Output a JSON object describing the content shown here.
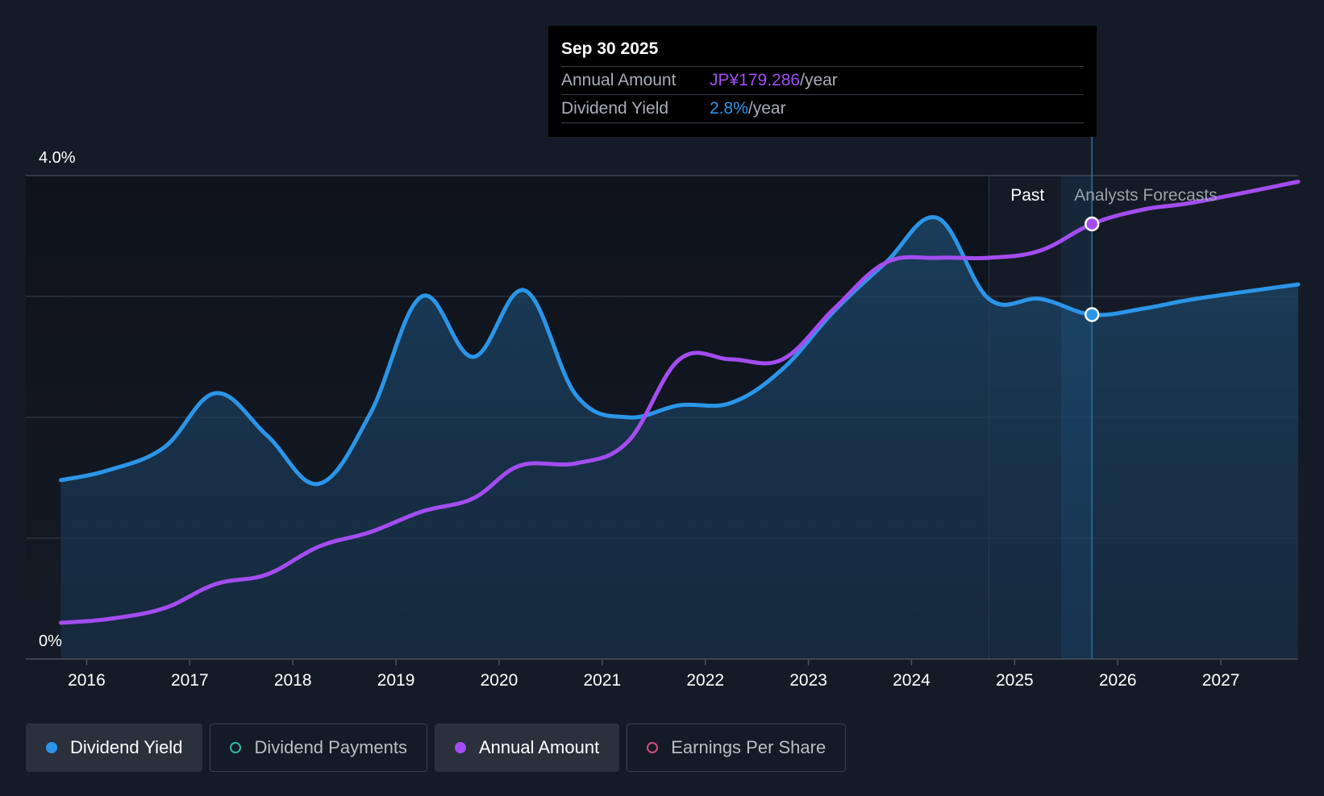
{
  "chart_data": {
    "type": "line",
    "y_axis": {
      "ylim": [
        0,
        4.0
      ],
      "labels": [
        "4.0%",
        "0%"
      ],
      "gridlines": [
        0,
        1,
        2,
        3,
        4
      ]
    },
    "x_axis": {
      "xlim": [
        2015.75,
        2027.75
      ],
      "ticks": [
        2016,
        2017,
        2018,
        2019,
        2020,
        2021,
        2022,
        2023,
        2024,
        2025,
        2026,
        2027
      ],
      "tick_labels": [
        "2016",
        "2017",
        "2018",
        "2019",
        "2020",
        "2021",
        "2022",
        "2023",
        "2024",
        "2025",
        "2026",
        "2027"
      ]
    },
    "regions": {
      "past_label": "Past",
      "forecast_label": "Analysts Forecasts",
      "past_band_start": 2024.75,
      "highlight_start": 2025.45,
      "divider_x": 2025.75
    },
    "series": [
      {
        "name": "Dividend Yield",
        "color": "#2b95e8",
        "filled": true,
        "x": [
          2015.75,
          2016.2,
          2016.75,
          2017.25,
          2017.75,
          2018.25,
          2018.75,
          2019.25,
          2019.75,
          2020.25,
          2020.75,
          2021.25,
          2021.75,
          2022.25,
          2022.75,
          2023.25,
          2023.75,
          2024.25,
          2024.75,
          2025.25,
          2025.75,
          2026.25,
          2026.75,
          2027.75
        ],
        "values": [
          1.48,
          1.56,
          1.75,
          2.2,
          1.85,
          1.45,
          2.03,
          3.0,
          2.5,
          3.05,
          2.18,
          2.0,
          2.1,
          2.12,
          2.4,
          2.88,
          3.28,
          3.65,
          2.98,
          2.98,
          2.85,
          2.9,
          2.98,
          3.1
        ]
      },
      {
        "name": "Annual Amount",
        "color": "#a34df0",
        "filled": false,
        "x": [
          2015.75,
          2016.2,
          2016.75,
          2017.25,
          2017.75,
          2018.25,
          2018.75,
          2019.25,
          2019.75,
          2020.2,
          2020.75,
          2021.25,
          2021.75,
          2022.25,
          2022.75,
          2023.25,
          2023.75,
          2024.25,
          2024.75,
          2025.25,
          2025.75,
          2026.25,
          2026.75,
          2027.75
        ],
        "values": [
          0.3,
          0.33,
          0.42,
          0.62,
          0.7,
          0.93,
          1.05,
          1.22,
          1.33,
          1.6,
          1.62,
          1.8,
          2.48,
          2.48,
          2.48,
          2.9,
          3.28,
          3.32,
          3.32,
          3.38,
          3.6,
          3.72,
          3.78,
          3.95
        ]
      }
    ],
    "markers": [
      {
        "series": "Annual Amount",
        "x": 2025.75,
        "value": 3.6
      },
      {
        "series": "Dividend Yield",
        "x": 2025.75,
        "value": 2.85
      }
    ]
  },
  "tooltip": {
    "date": "Sep 30 2025",
    "rows": [
      {
        "label": "Annual Amount",
        "value": "JP¥179.286",
        "unit": "/year",
        "color": "#a34df0"
      },
      {
        "label": "Dividend Yield",
        "value": "2.8%",
        "unit": "/year",
        "color": "#2b95e8"
      }
    ]
  },
  "legend": [
    {
      "label": "Dividend Yield",
      "active": true,
      "dot_color": "#2b95e8",
      "hollow": false
    },
    {
      "label": "Dividend Payments",
      "active": false,
      "dot_color": "#2fb8a6",
      "hollow": true
    },
    {
      "label": "Annual Amount",
      "active": true,
      "dot_color": "#a34df0",
      "hollow": false
    },
    {
      "label": "Earnings Per Share",
      "active": false,
      "dot_color": "#d24b7d",
      "hollow": true
    }
  ]
}
